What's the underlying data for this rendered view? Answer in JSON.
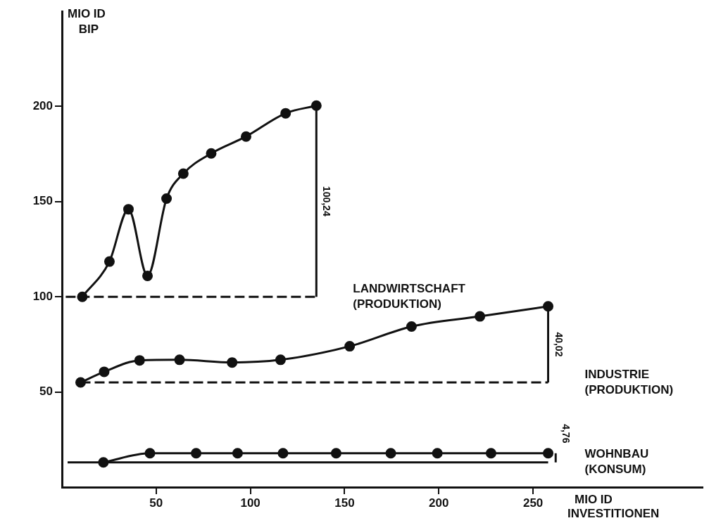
{
  "chart_data": {
    "type": "line",
    "xlabel": "MIO ID INVESTITIONEN",
    "ylabel": "MIO ID BIP",
    "xlim": [
      0,
      340
    ],
    "xticks": [
      50,
      100,
      150,
      200,
      250
    ],
    "ylim": [
      0,
      250
    ],
    "yticks": [
      50,
      100,
      150,
      200
    ],
    "grid": false,
    "legend": false,
    "series": [
      {
        "name": "LANDWIRTSCHAFT (PRODUKTION)",
        "color": "#111111",
        "marker": "circle",
        "line_style": "solid",
        "x": [
          10.8,
          25.2,
          35.3,
          45.4,
          55.5,
          64.4,
          79.2,
          97.7,
          118.7,
          135
        ],
        "values": [
          100,
          118.5,
          146,
          111,
          151.6,
          164.7,
          175.3,
          184.2,
          196.4,
          200.4
        ]
      },
      {
        "color": "#111111",
        "marker": "none",
        "line_style": "dashed",
        "x": [
          2,
          135
        ],
        "values": [
          100,
          100
        ]
      },
      {
        "color": "#111111",
        "marker": "none",
        "line_style": "solid",
        "x": [
          135,
          135
        ],
        "values": [
          100,
          200.4
        ]
      },
      {
        "name": "INDUSTRIE (PRODUKTION)",
        "color": "#111111",
        "marker": "circle",
        "line_style": "solid",
        "x": [
          9.9,
          22.4,
          41.2,
          62.4,
          90.3,
          116,
          152.7,
          185.5,
          221.8,
          258
        ],
        "values": [
          55,
          60.6,
          66.6,
          66.9,
          65.5,
          66.9,
          74,
          84.4,
          89.7,
          95
        ]
      },
      {
        "color": "#111111",
        "marker": "none",
        "line_style": "dashed",
        "x": [
          9.9,
          258
        ],
        "values": [
          55,
          55
        ]
      },
      {
        "color": "#111111",
        "marker": "none",
        "line_style": "solid",
        "x": [
          258,
          258
        ],
        "values": [
          55,
          95
        ]
      },
      {
        "name": "WOHNBAU (KONSUM)",
        "color": "#111111",
        "marker": "circle",
        "line_style": "solid",
        "x": [
          22,
          46.7,
          71.2,
          93.2,
          117.3,
          145.5,
          174.5,
          199.2,
          227.7,
          258
        ],
        "values": [
          13,
          17.8,
          17.8,
          17.8,
          17.8,
          17.8,
          17.8,
          17.8,
          17.8,
          17.8
        ]
      },
      {
        "color": "#111111",
        "marker": "none",
        "line_style": "solid",
        "x": [
          3,
          258
        ],
        "values": [
          13,
          13
        ]
      },
      {
        "color": "#111111",
        "marker": "none",
        "line_style": "solid",
        "x": [
          262,
          262
        ],
        "values": [
          13,
          17.8
        ]
      }
    ],
    "annotations": [
      "100,24",
      "40,02",
      "4,76"
    ]
  }
}
